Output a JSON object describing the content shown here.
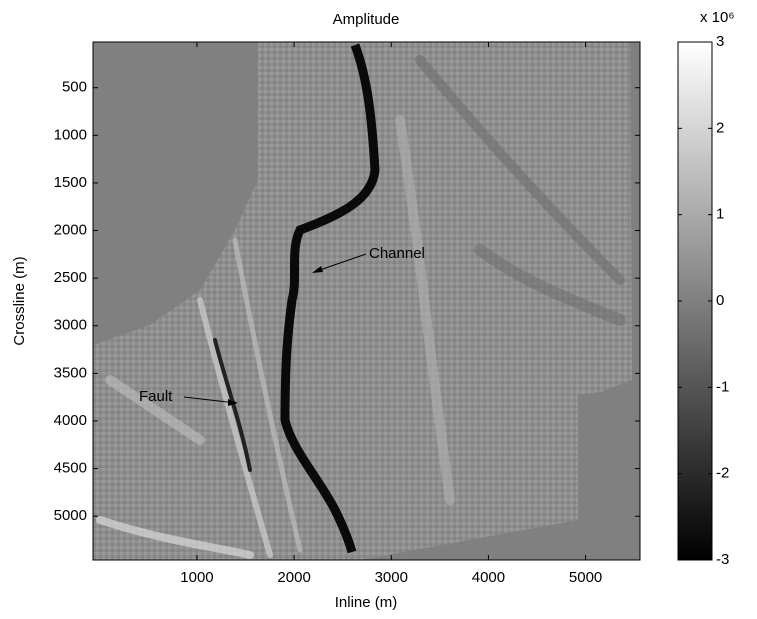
{
  "chart_data": {
    "type": "image",
    "title": "Amplitude",
    "x_label": "Inline (m)",
    "y_label": "Crossline (m)",
    "xlim": [
      -70,
      5560
    ],
    "xticks": [
      1000,
      2000,
      3000,
      4000,
      5000
    ],
    "ylim": [
      5460,
      20
    ],
    "yticks": [
      500,
      1000,
      1500,
      2000,
      2500,
      3000,
      3500,
      4000,
      4500,
      5000
    ],
    "colorbar": {
      "lim": [
        -3,
        3
      ],
      "ticks": [
        -3,
        -2,
        -1,
        0,
        1,
        2,
        3
      ],
      "multiplier": "x 10⁶",
      "colors": [
        "#000000",
        "#ffffff"
      ]
    },
    "annotations": [
      "Channel",
      "Fault"
    ]
  }
}
